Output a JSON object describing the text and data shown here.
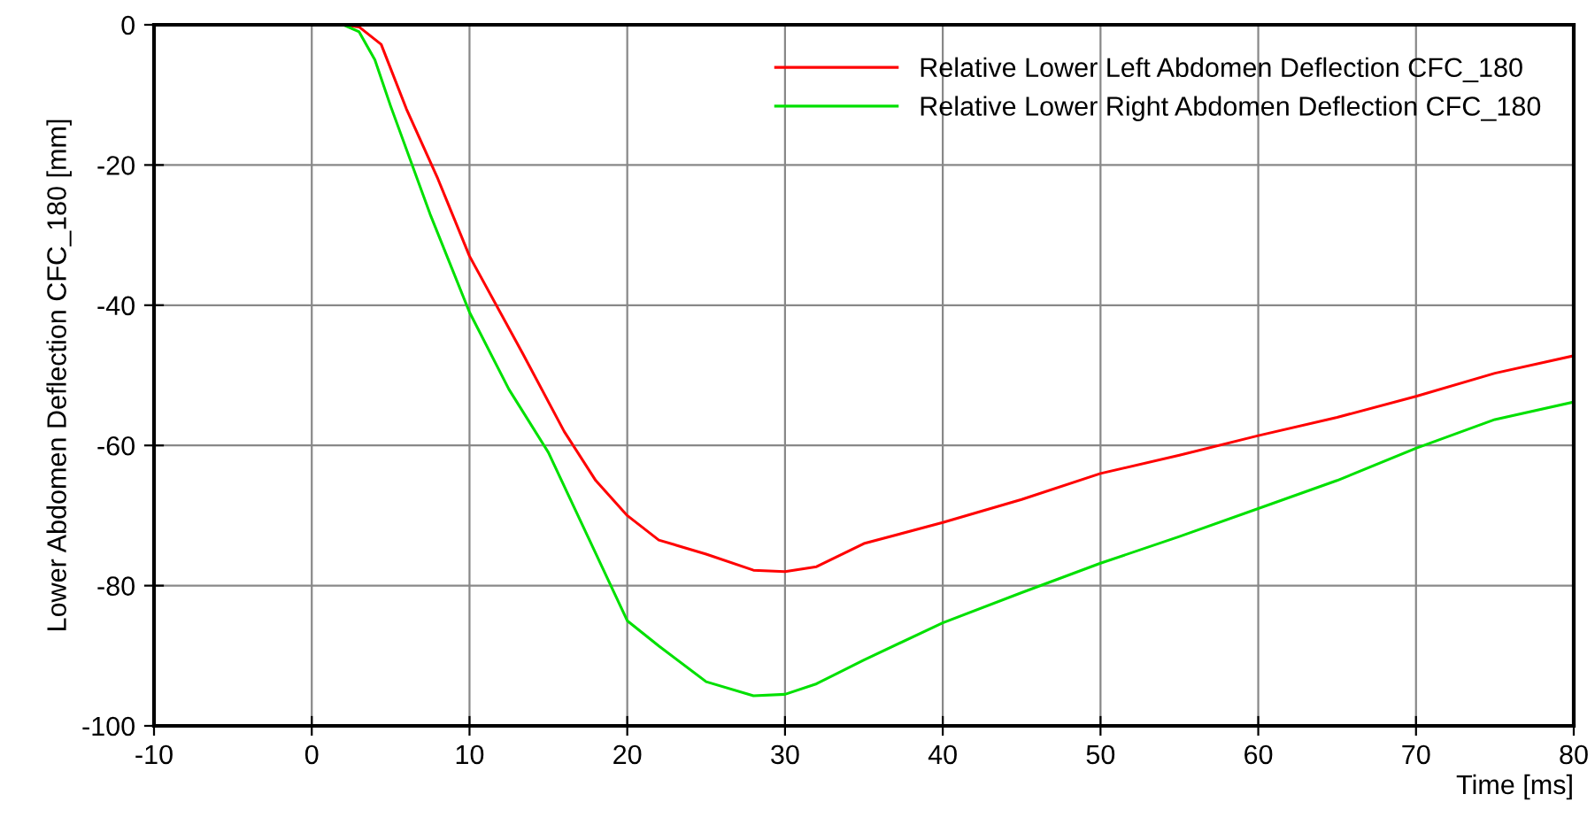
{
  "chart_data": {
    "type": "line",
    "xlabel": "Time [ms]",
    "ylabel": "Lower Abdomen Deflection CFC_180 [mm]",
    "xlim": [
      -10,
      80
    ],
    "xticks": [
      -10,
      0,
      10,
      20,
      30,
      40,
      50,
      60,
      70,
      80
    ],
    "ylim": [
      -100,
      0
    ],
    "yticks": [
      -100,
      -80,
      -60,
      -40,
      -20,
      0
    ],
    "grid": true,
    "legend": "top right",
    "marker": "none",
    "line_style": "solid",
    "series": [
      {
        "name": "Relative Lower Left Abdomen Deflection CFC_180",
        "color": "#ff0000",
        "x": [
          -10,
          0,
          2,
          3,
          4.4,
          6,
          8,
          10,
          13.4,
          16,
          18,
          20,
          22,
          25,
          28,
          30,
          32,
          35,
          40,
          45,
          50,
          55,
          60,
          65,
          70,
          75,
          80
        ],
        "values": [
          0,
          0,
          0,
          -0.3,
          -2.8,
          -12,
          -22,
          -33,
          -47,
          -58,
          -65,
          -70,
          -73.5,
          -75.5,
          -77.8,
          -78,
          -77.3,
          -74,
          -71,
          -67.7,
          -64,
          -61.4,
          -58.6,
          -56,
          -53,
          -49.7,
          -47.2
        ]
      },
      {
        "name": "Relative Lower Right Abdomen Deflection CFC_180",
        "color": "#00e000",
        "x": [
          -10,
          0,
          2,
          3,
          4,
          5,
          7.5,
          10,
          12.5,
          15,
          17.5,
          20,
          22,
          25,
          28,
          30,
          32,
          35,
          40,
          45,
          50,
          55,
          60,
          65,
          70,
          75,
          80
        ],
        "values": [
          0,
          0,
          0,
          -1,
          -5,
          -11.6,
          -27,
          -41,
          -52,
          -61,
          -73,
          -85,
          -88.6,
          -93.7,
          -95.7,
          -95.5,
          -94,
          -90.6,
          -85.3,
          -81,
          -76.8,
          -73,
          -69,
          -65,
          -60.4,
          -56.3,
          -53.8
        ]
      }
    ]
  }
}
